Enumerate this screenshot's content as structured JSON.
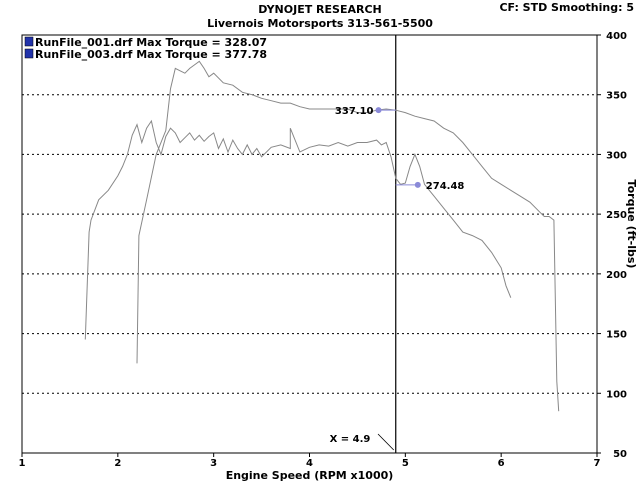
{
  "header": {
    "title": "DYNOJET RESEARCH",
    "subtitle": "Livernois Motorsports 313-561-5500",
    "correction": "CF: STD  Smoothing: 5"
  },
  "chart_data": {
    "type": "line",
    "xlabel": "Engine Speed (RPM x1000)",
    "ylabel": "Torque (ft-lbs)",
    "xlim": [
      1,
      7
    ],
    "ylim": [
      50,
      400
    ],
    "xticks": [
      "1",
      "2",
      "3",
      "4",
      "5",
      "6",
      "7"
    ],
    "yticks": [
      "50",
      "100",
      "150",
      "200",
      "250",
      "300",
      "350",
      "400"
    ],
    "grid": true,
    "legend_position": "top-left",
    "colors": {
      "line": "#888888",
      "marker": "#8a8ad8",
      "legend_box": "#2233aa",
      "cursor": "#000000"
    },
    "series": [
      {
        "name": "RunFile_001.drf Max Torque = 328.07",
        "x": [
          1.66,
          1.7,
          1.72,
          1.8,
          1.9,
          2.0,
          2.05,
          2.1,
          2.15,
          2.2,
          2.25,
          2.3,
          2.35,
          2.4,
          2.45,
          2.5,
          2.55,
          2.6,
          2.65,
          2.7,
          2.75,
          2.8,
          2.85,
          2.9,
          2.95,
          3.0,
          3.05,
          3.1,
          3.15,
          3.2,
          3.25,
          3.3,
          3.35,
          3.4,
          3.45,
          3.5,
          3.6,
          3.7,
          3.8,
          3.8,
          3.9,
          4.0,
          4.1,
          4.2,
          4.3,
          4.4,
          4.5,
          4.6,
          4.7,
          4.75,
          4.8,
          4.85,
          4.9,
          4.95,
          5.0,
          5.05,
          5.1,
          5.15,
          5.2,
          5.25,
          5.3,
          5.4,
          5.5,
          5.6,
          5.7,
          5.8,
          5.9,
          6.0,
          6.05,
          6.1
        ],
        "y": [
          145,
          235,
          245,
          262,
          270,
          282,
          290,
          300,
          316,
          325,
          310,
          322,
          328,
          310,
          300,
          315,
          322,
          318,
          310,
          314,
          318,
          312,
          316,
          311,
          315,
          318,
          305,
          313,
          302,
          312,
          305,
          300,
          308,
          300,
          305,
          298,
          306,
          308,
          305,
          322,
          302,
          306,
          308,
          307,
          310,
          307,
          310,
          310,
          312,
          308,
          310,
          298,
          280,
          275,
          276,
          290,
          300,
          290,
          275,
          270,
          265,
          255,
          245,
          235,
          232,
          228,
          218,
          205,
          190,
          180
        ]
      },
      {
        "name": "RunFile_003.drf Max Torque = 377.78",
        "x": [
          2.2,
          2.22,
          2.3,
          2.4,
          2.5,
          2.55,
          2.6,
          2.65,
          2.7,
          2.75,
          2.8,
          2.85,
          2.9,
          2.95,
          3.0,
          3.1,
          3.2,
          3.3,
          3.4,
          3.5,
          3.6,
          3.7,
          3.8,
          3.9,
          4.0,
          4.1,
          4.2,
          4.3,
          4.4,
          4.5,
          4.6,
          4.7,
          4.8,
          4.9,
          5.0,
          5.1,
          5.2,
          5.3,
          5.4,
          5.5,
          5.6,
          5.7,
          5.8,
          5.9,
          6.0,
          6.1,
          6.2,
          6.3,
          6.4,
          6.45,
          6.5,
          6.55,
          6.58,
          6.6
        ],
        "y": [
          125,
          232,
          262,
          300,
          320,
          355,
          372,
          370,
          368,
          372,
          375,
          378,
          372,
          365,
          368,
          360,
          358,
          352,
          350,
          347,
          345,
          343,
          343,
          340,
          338,
          338,
          338,
          338,
          338,
          335,
          335,
          337,
          338,
          337,
          335,
          332,
          330,
          328,
          322,
          318,
          310,
          300,
          290,
          280,
          275,
          270,
          265,
          260,
          252,
          248,
          248,
          245,
          110,
          85
        ]
      }
    ],
    "annotations": [
      {
        "label": "337.10",
        "x": 4.72,
        "y": 337.1
      },
      {
        "label": "274.48",
        "x": 5.13,
        "y": 274.48
      }
    ],
    "cursor": {
      "label": "X = 4.9",
      "x": 4.9
    }
  }
}
